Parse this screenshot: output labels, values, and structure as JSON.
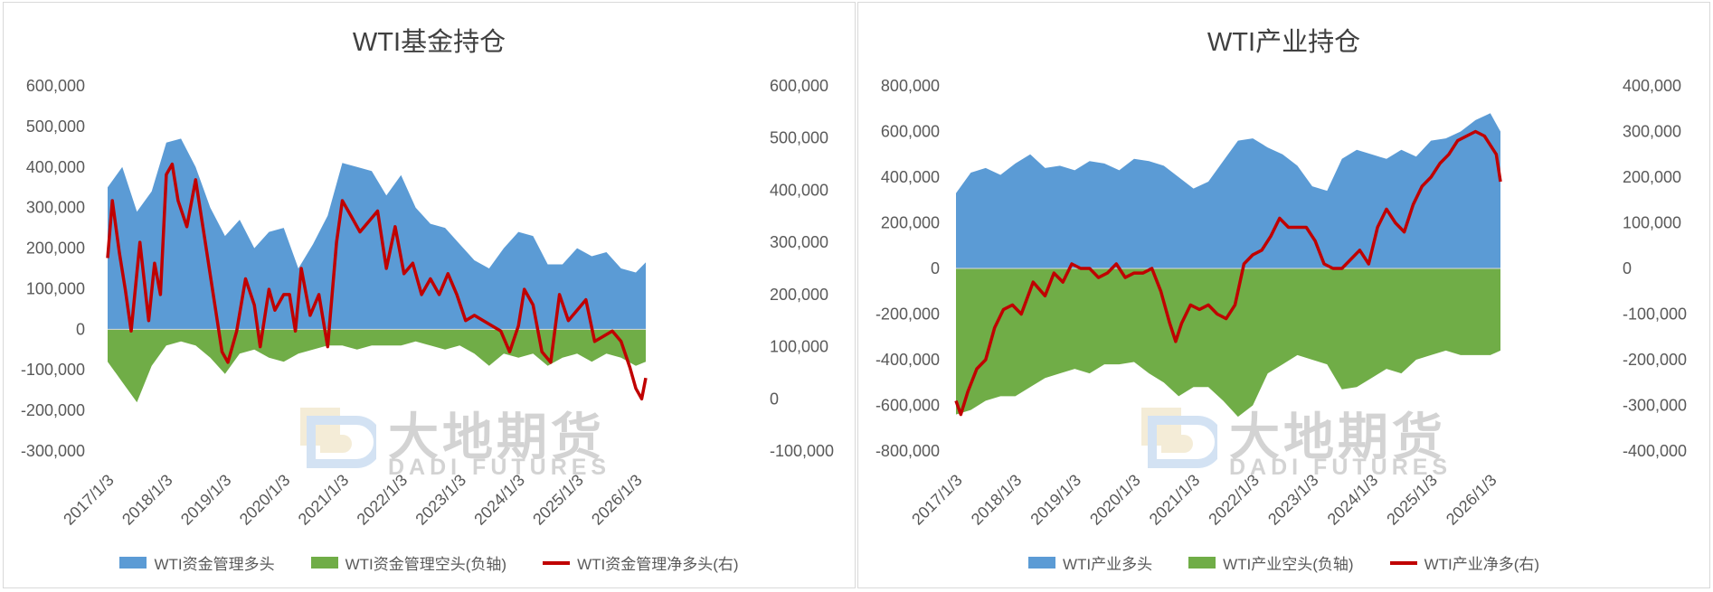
{
  "watermark": {
    "cn": "大地期货",
    "en": "DADI FUTURES"
  },
  "chart_data": [
    {
      "type": "area",
      "title": "WTI基金持仓",
      "x_tick_labels": [
        "2017/1/3",
        "2018/1/3",
        "2019/1/3",
        "2020/1/3",
        "2021/1/3",
        "2022/1/3",
        "2023/1/3",
        "2024/1/3",
        "2025/1/3",
        "2026/1/3"
      ],
      "x_range": [
        "2017/1/3",
        "2026/3"
      ],
      "y_left": {
        "range": [
          -300000,
          600000
        ],
        "ticks": [
          600000,
          500000,
          400000,
          300000,
          200000,
          100000,
          0,
          -100000,
          -200000,
          -300000
        ],
        "tick_labels": [
          "600,000",
          "500,000",
          "400,000",
          "300,000",
          "200,000",
          "100,000",
          "0",
          "-100,000",
          "-200,000",
          "-300,000"
        ]
      },
      "y_right": {
        "range": [
          -100000,
          600000
        ],
        "ticks": [
          600000,
          500000,
          400000,
          300000,
          200000,
          100000,
          0,
          -100000
        ],
        "tick_labels": [
          "600,000",
          "500,000",
          "400,000",
          "300,000",
          "200,000",
          "100,000",
          "0",
          "-100,000"
        ]
      },
      "legend_position": "bottom",
      "series": [
        {
          "name": "WTI资金管理多头",
          "axis": "left",
          "style": "area",
          "color": "#5B9BD5",
          "x": [
            2017.0,
            2017.25,
            2017.5,
            2017.75,
            2018.0,
            2018.25,
            2018.5,
            2018.75,
            2019.0,
            2019.25,
            2019.5,
            2019.75,
            2020.0,
            2020.25,
            2020.5,
            2020.75,
            2021.0,
            2021.25,
            2021.5,
            2021.75,
            2022.0,
            2022.25,
            2022.5,
            2022.75,
            2023.0,
            2023.25,
            2023.5,
            2023.75,
            2024.0,
            2024.25,
            2024.5,
            2024.75,
            2025.0,
            2025.25,
            2025.5,
            2025.75,
            2026.0,
            2026.17
          ],
          "values": [
            350000,
            400000,
            290000,
            340000,
            460000,
            470000,
            400000,
            300000,
            230000,
            270000,
            200000,
            240000,
            250000,
            150000,
            210000,
            280000,
            410000,
            400000,
            390000,
            330000,
            380000,
            300000,
            260000,
            250000,
            210000,
            170000,
            150000,
            200000,
            240000,
            230000,
            160000,
            160000,
            200000,
            180000,
            190000,
            150000,
            140000,
            165000
          ]
        },
        {
          "name": "WTI资金管理空头(负轴)",
          "axis": "left",
          "style": "area",
          "color": "#70AD47",
          "x": [
            2017.0,
            2017.25,
            2017.5,
            2017.75,
            2018.0,
            2018.25,
            2018.5,
            2018.75,
            2019.0,
            2019.25,
            2019.5,
            2019.75,
            2020.0,
            2020.25,
            2020.5,
            2020.75,
            2021.0,
            2021.25,
            2021.5,
            2021.75,
            2022.0,
            2022.25,
            2022.5,
            2022.75,
            2023.0,
            2023.25,
            2023.5,
            2023.75,
            2024.0,
            2024.25,
            2024.5,
            2024.75,
            2025.0,
            2025.25,
            2025.5,
            2025.75,
            2026.0,
            2026.17
          ],
          "values": [
            -80000,
            -130000,
            -180000,
            -90000,
            -40000,
            -30000,
            -40000,
            -70000,
            -110000,
            -60000,
            -50000,
            -70000,
            -80000,
            -60000,
            -50000,
            -40000,
            -40000,
            -50000,
            -40000,
            -40000,
            -40000,
            -30000,
            -40000,
            -50000,
            -40000,
            -60000,
            -90000,
            -60000,
            -70000,
            -60000,
            -90000,
            -70000,
            -60000,
            -80000,
            -60000,
            -70000,
            -90000,
            -80000
          ]
        },
        {
          "name": "WTI资金管理净多头(右)",
          "axis": "right",
          "style": "line",
          "color": "#C00000",
          "x": [
            2017.0,
            2017.08,
            2017.2,
            2017.3,
            2017.4,
            2017.55,
            2017.7,
            2017.8,
            2017.9,
            2018.0,
            2018.1,
            2018.2,
            2018.35,
            2018.5,
            2018.65,
            2018.8,
            2018.95,
            2019.05,
            2019.2,
            2019.35,
            2019.5,
            2019.6,
            2019.75,
            2019.85,
            2020.0,
            2020.1,
            2020.2,
            2020.3,
            2020.45,
            2020.6,
            2020.75,
            2020.9,
            2021.0,
            2021.15,
            2021.3,
            2021.45,
            2021.6,
            2021.75,
            2021.9,
            2022.05,
            2022.2,
            2022.35,
            2022.5,
            2022.65,
            2022.8,
            2022.95,
            2023.1,
            2023.25,
            2023.4,
            2023.55,
            2023.7,
            2023.85,
            2024.0,
            2024.1,
            2024.25,
            2024.4,
            2024.55,
            2024.7,
            2024.85,
            2025.0,
            2025.15,
            2025.3,
            2025.45,
            2025.6,
            2025.75,
            2025.9,
            2026.0,
            2026.1,
            2026.17
          ],
          "values": [
            270000,
            380000,
            280000,
            210000,
            130000,
            300000,
            150000,
            260000,
            200000,
            430000,
            450000,
            380000,
            330000,
            420000,
            310000,
            200000,
            90000,
            70000,
            130000,
            230000,
            180000,
            100000,
            210000,
            170000,
            200000,
            200000,
            130000,
            250000,
            160000,
            200000,
            100000,
            300000,
            380000,
            350000,
            320000,
            340000,
            360000,
            250000,
            330000,
            240000,
            260000,
            200000,
            230000,
            200000,
            240000,
            200000,
            150000,
            160000,
            150000,
            140000,
            130000,
            90000,
            140000,
            210000,
            180000,
            90000,
            70000,
            200000,
            150000,
            170000,
            190000,
            110000,
            120000,
            130000,
            110000,
            60000,
            20000,
            0,
            40000
          ]
        }
      ]
    },
    {
      "type": "area",
      "title": "WTI产业持仓",
      "x_tick_labels": [
        "2017/1/3",
        "2018/1/3",
        "2019/1/3",
        "2020/1/3",
        "2021/1/3",
        "2022/1/3",
        "2023/1/3",
        "2024/1/3",
        "2025/1/3",
        "2026/1/3"
      ],
      "x_range": [
        "2017/1/3",
        "2026/3"
      ],
      "y_left": {
        "range": [
          -800000,
          800000
        ],
        "ticks": [
          800000,
          600000,
          400000,
          200000,
          0,
          -200000,
          -400000,
          -600000,
          -800000
        ],
        "tick_labels": [
          "800,000",
          "600,000",
          "400,000",
          "200,000",
          "0",
          "-200,000",
          "-400,000",
          "-600,000",
          "-800,000"
        ]
      },
      "y_right": {
        "range": [
          -400000,
          400000
        ],
        "ticks": [
          400000,
          300000,
          200000,
          100000,
          0,
          -100000,
          -200000,
          -300000,
          -400000
        ],
        "tick_labels": [
          "400,000",
          "300,000",
          "200,000",
          "100,000",
          "0",
          "-100,000",
          "-200,000",
          "-300,000",
          "-400,000"
        ]
      },
      "legend_position": "bottom",
      "series": [
        {
          "name": "WTI产业多头",
          "axis": "left",
          "style": "area",
          "color": "#5B9BD5",
          "x": [
            2017.0,
            2017.25,
            2017.5,
            2017.75,
            2018.0,
            2018.25,
            2018.5,
            2018.75,
            2019.0,
            2019.25,
            2019.5,
            2019.75,
            2020.0,
            2020.25,
            2020.5,
            2020.75,
            2021.0,
            2021.25,
            2021.5,
            2021.75,
            2022.0,
            2022.25,
            2022.5,
            2022.75,
            2023.0,
            2023.25,
            2023.5,
            2023.75,
            2024.0,
            2024.25,
            2024.5,
            2024.75,
            2025.0,
            2025.25,
            2025.5,
            2025.75,
            2026.0,
            2026.17
          ],
          "values": [
            330000,
            420000,
            440000,
            410000,
            460000,
            500000,
            440000,
            450000,
            430000,
            470000,
            460000,
            430000,
            480000,
            470000,
            450000,
            400000,
            350000,
            380000,
            470000,
            560000,
            570000,
            530000,
            500000,
            450000,
            360000,
            340000,
            480000,
            520000,
            500000,
            480000,
            520000,
            490000,
            560000,
            570000,
            600000,
            650000,
            680000,
            600000
          ]
        },
        {
          "name": "WTI产业空头(负轴)",
          "axis": "left",
          "style": "area",
          "color": "#70AD47",
          "x": [
            2017.0,
            2017.25,
            2017.5,
            2017.75,
            2018.0,
            2018.25,
            2018.5,
            2018.75,
            2019.0,
            2019.25,
            2019.5,
            2019.75,
            2020.0,
            2020.25,
            2020.5,
            2020.75,
            2021.0,
            2021.25,
            2021.5,
            2021.75,
            2022.0,
            2022.25,
            2022.5,
            2022.75,
            2023.0,
            2023.25,
            2023.5,
            2023.75,
            2024.0,
            2024.25,
            2024.5,
            2024.75,
            2025.0,
            2025.25,
            2025.5,
            2025.75,
            2026.0,
            2026.17
          ],
          "values": [
            -640000,
            -620000,
            -580000,
            -560000,
            -560000,
            -520000,
            -480000,
            -460000,
            -440000,
            -460000,
            -420000,
            -420000,
            -410000,
            -460000,
            -500000,
            -560000,
            -520000,
            -520000,
            -580000,
            -650000,
            -600000,
            -460000,
            -420000,
            -380000,
            -400000,
            -420000,
            -530000,
            -520000,
            -480000,
            -440000,
            -460000,
            -400000,
            -380000,
            -360000,
            -380000,
            -380000,
            -380000,
            -360000
          ]
        },
        {
          "name": "WTI产业净多(右)",
          "axis": "right",
          "style": "line",
          "color": "#C00000",
          "x": [
            2017.0,
            2017.08,
            2017.2,
            2017.35,
            2017.5,
            2017.65,
            2017.8,
            2017.95,
            2018.1,
            2018.3,
            2018.5,
            2018.65,
            2018.8,
            2018.95,
            2019.1,
            2019.25,
            2019.4,
            2019.55,
            2019.7,
            2019.85,
            2020.0,
            2020.15,
            2020.3,
            2020.45,
            2020.6,
            2020.7,
            2020.8,
            2020.95,
            2021.1,
            2021.25,
            2021.4,
            2021.55,
            2021.7,
            2021.85,
            2022.0,
            2022.15,
            2022.3,
            2022.45,
            2022.6,
            2022.75,
            2022.9,
            2023.05,
            2023.2,
            2023.35,
            2023.5,
            2023.65,
            2023.8,
            2023.95,
            2024.1,
            2024.25,
            2024.4,
            2024.55,
            2024.7,
            2024.85,
            2025.0,
            2025.15,
            2025.3,
            2025.45,
            2025.6,
            2025.75,
            2025.9,
            2026.0,
            2026.1,
            2026.17
          ],
          "values": [
            -290000,
            -320000,
            -270000,
            -220000,
            -200000,
            -130000,
            -90000,
            -80000,
            -100000,
            -30000,
            -60000,
            -10000,
            -30000,
            10000,
            0,
            0,
            -20000,
            -10000,
            10000,
            -20000,
            -10000,
            -10000,
            0,
            -50000,
            -120000,
            -160000,
            -120000,
            -80000,
            -90000,
            -80000,
            -100000,
            -110000,
            -80000,
            10000,
            30000,
            40000,
            70000,
            110000,
            90000,
            90000,
            90000,
            60000,
            10000,
            0,
            0,
            20000,
            40000,
            10000,
            90000,
            130000,
            100000,
            80000,
            140000,
            180000,
            200000,
            230000,
            250000,
            280000,
            290000,
            300000,
            290000,
            270000,
            250000,
            190000
          ]
        }
      ]
    }
  ]
}
